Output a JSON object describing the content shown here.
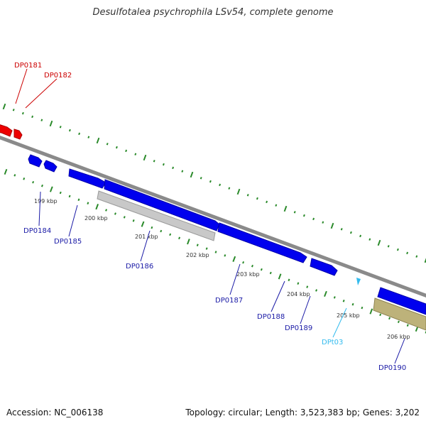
{
  "title": "Desulfotalea psychrophila LSv54, complete genome",
  "footer": {
    "accession": "Accession: NC_006138",
    "summary": "Topology: circular; Length: 3,523,383 bp; Genes: 3,202"
  },
  "colors": {
    "backbone": "#8a8a8a",
    "tick": "#2a8a2a",
    "forward_gene": "#0000ee",
    "reverse_gene": "#ee0000",
    "pseudogene": "#c8c8c8",
    "trna": "#33bbee",
    "rrna": "#bdb27a",
    "label_forward": "#1a1aa6",
    "label_reverse": "#cc0000",
    "label_trna": "#33bbee"
  },
  "tick_labels": [
    "199 kbp",
    "200 kbp",
    "201 kbp",
    "202 kbp",
    "203 kbp",
    "204 kbp",
    "205 kbp",
    "206 kbp"
  ],
  "genes": [
    {
      "name": "DP0181",
      "color": "label_reverse"
    },
    {
      "name": "DP0182",
      "color": "label_reverse"
    },
    {
      "name": "DP0184",
      "color": "label_forward"
    },
    {
      "name": "DP0185",
      "color": "label_forward"
    },
    {
      "name": "DP0186",
      "color": "label_forward"
    },
    {
      "name": "DP0187",
      "color": "label_forward"
    },
    {
      "name": "DP0188",
      "color": "label_forward"
    },
    {
      "name": "DP0189",
      "color": "label_forward"
    },
    {
      "name": "DPt03",
      "color": "label_trna"
    },
    {
      "name": "DP0190",
      "color": "label_forward"
    }
  ]
}
